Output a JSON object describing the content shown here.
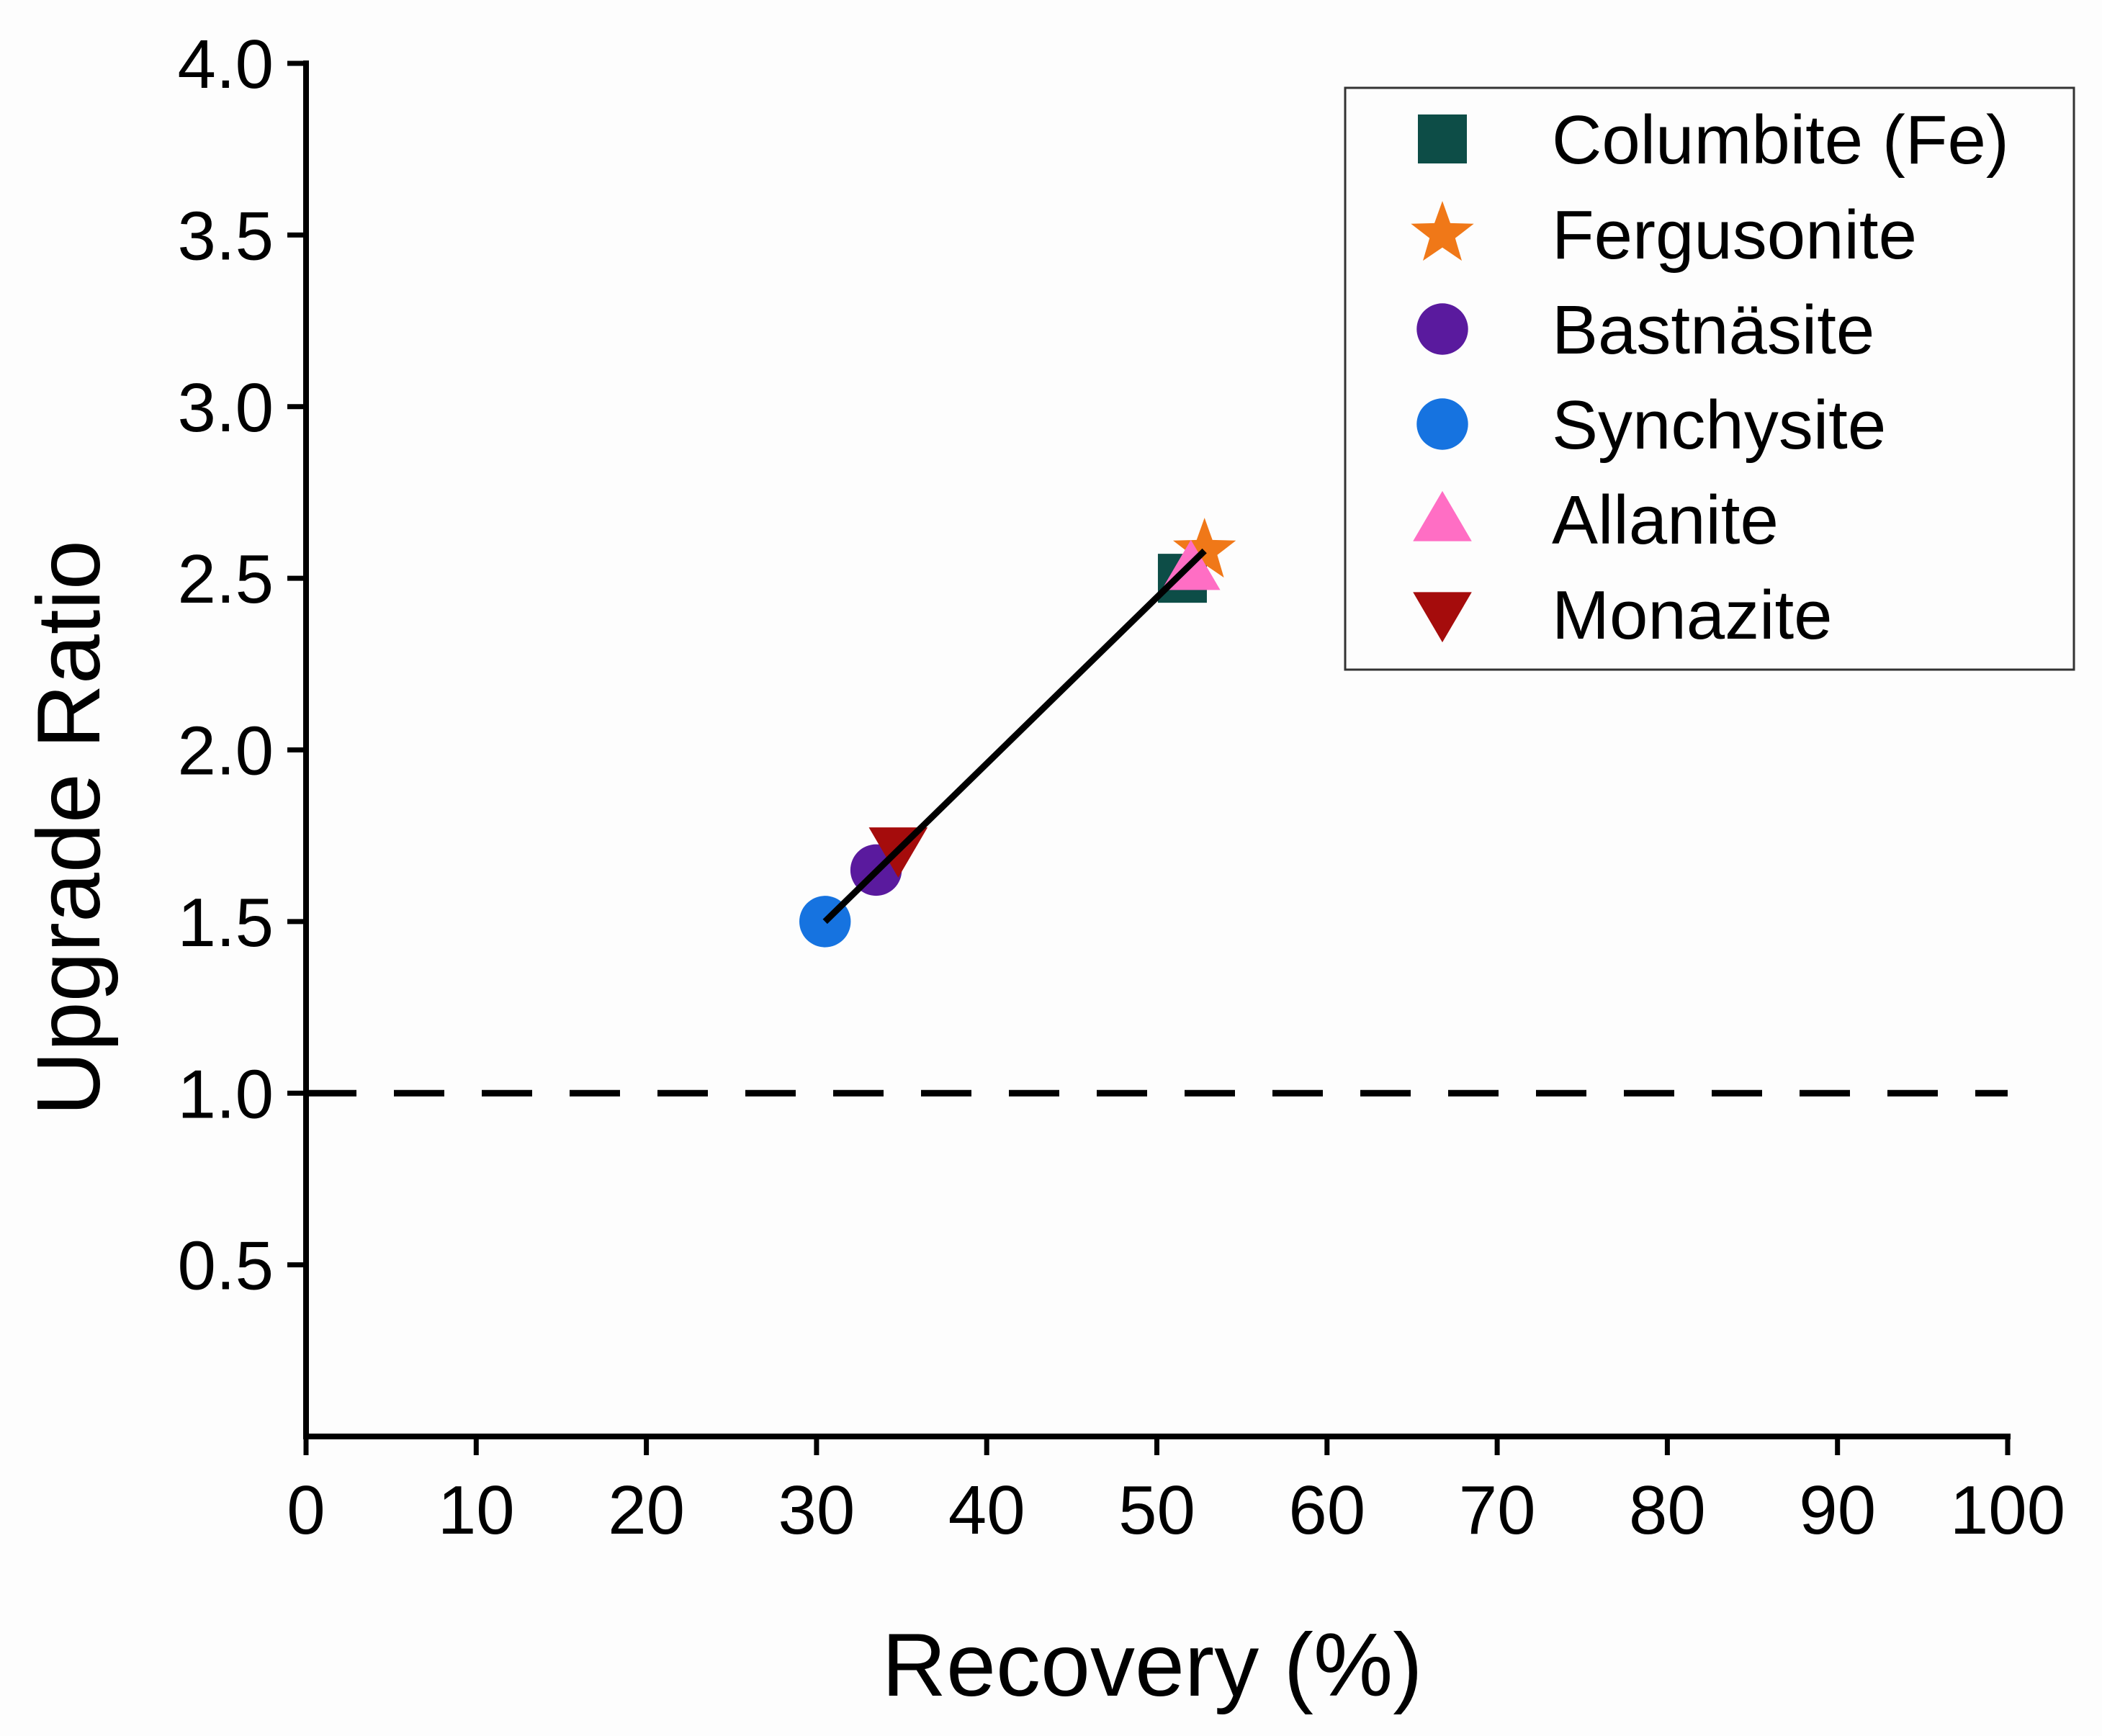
{
  "chart_data": {
    "type": "scatter",
    "xlabel": "Recovery (%)",
    "ylabel": "Upgrade Ratio",
    "xlim": [
      0,
      100
    ],
    "ylim": [
      0,
      4.0
    ],
    "xticks": [
      0,
      10,
      20,
      30,
      40,
      50,
      60,
      70,
      80,
      90,
      100
    ],
    "xtick_labels": [
      "0",
      "10",
      "20",
      "30",
      "40",
      "50",
      "60",
      "70",
      "80",
      "90",
      "100"
    ],
    "yticks": [
      0.5,
      1.0,
      1.5,
      2.0,
      2.5,
      3.0,
      3.5,
      4.0
    ],
    "ytick_labels": [
      "0.5",
      "1.0",
      "1.5",
      "2.0",
      "2.5",
      "3.0",
      "3.5",
      "4.0"
    ],
    "grid": false,
    "legend_position": "top-right",
    "series": [
      {
        "name": "Columbite (Fe)",
        "marker": "square",
        "color": "#0d4d47",
        "x": 51.5,
        "y": 2.5
      },
      {
        "name": "Fergusonite",
        "marker": "star",
        "color": "#f07818",
        "x": 52.8,
        "y": 2.58
      },
      {
        "name": "Bastnäsite",
        "marker": "circle",
        "color": "#5a1a9e",
        "x": 33.5,
        "y": 1.65
      },
      {
        "name": "Synchysite",
        "marker": "circle",
        "color": "#1673e0",
        "x": 30.5,
        "y": 1.5
      },
      {
        "name": "Allanite",
        "marker": "triangle-up",
        "color": "#ff6ec4",
        "x": 52.0,
        "y": 2.53
      },
      {
        "name": "Monazite",
        "marker": "triangle-down",
        "color": "#a50c0c",
        "x": 34.8,
        "y": 1.71
      }
    ],
    "trend_line": {
      "x": [
        30.5,
        52.8
      ],
      "y": [
        1.5,
        2.58
      ],
      "color": "#000000"
    },
    "reference_line": {
      "y": 1.0,
      "style": "dashed",
      "color": "#000000"
    }
  }
}
